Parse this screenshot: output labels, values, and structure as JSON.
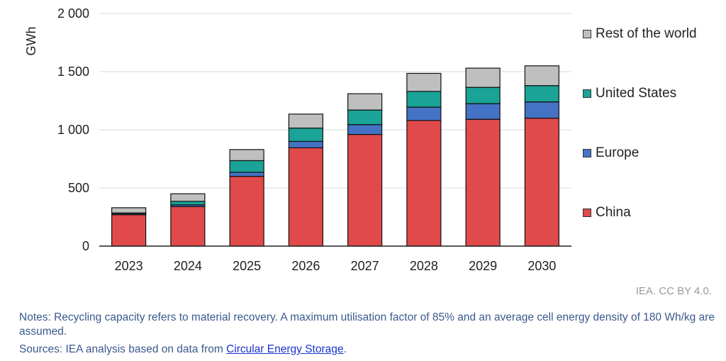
{
  "chart_data": {
    "type": "bar",
    "stacked": true,
    "title": "",
    "xlabel": "",
    "ylabel": "GWh",
    "ylim": [
      0,
      2000
    ],
    "yticks": [
      0,
      500,
      1000,
      1500,
      2000
    ],
    "ytick_labels": [
      "0",
      "500",
      "1 000",
      "1 500",
      "2 000"
    ],
    "grid": true,
    "legend_position": "right",
    "categories": [
      "2023",
      "2024",
      "2025",
      "2026",
      "2027",
      "2028",
      "2029",
      "2030"
    ],
    "series": [
      {
        "name": "China",
        "color": "#e04a4a",
        "values": [
          270,
          340,
          600,
          845,
          960,
          1080,
          1090,
          1100
        ]
      },
      {
        "name": "Europe",
        "color": "#4472c4",
        "values": [
          10,
          15,
          35,
          55,
          85,
          115,
          135,
          140
        ]
      },
      {
        "name": "United States",
        "color": "#1aa397",
        "values": [
          5,
          30,
          100,
          115,
          125,
          135,
          140,
          140
        ]
      },
      {
        "name": "Rest of the world",
        "color": "#bfbfbf",
        "values": [
          45,
          65,
          95,
          120,
          140,
          155,
          165,
          170
        ]
      }
    ]
  },
  "credit": "IEA. CC BY 4.0.",
  "notes": "Notes: Recycling capacity refers to material recovery. A maximum utilisation factor of 85% and an average cell energy density of 180 Wh/kg are assumed.",
  "sources": {
    "prefix": "Sources: IEA analysis based on data from ",
    "link_text": "Circular Energy Storage",
    "suffix": "."
  }
}
